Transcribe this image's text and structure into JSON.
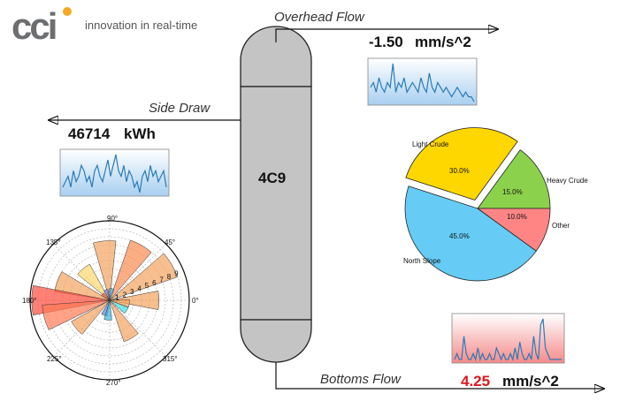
{
  "brand": {
    "logo_text": "cci",
    "tagline": "innovation in real-time"
  },
  "column": {
    "id": "4C9"
  },
  "overhead": {
    "label": "Overhead Flow",
    "value": "-1.50",
    "unit": "mm/s^2"
  },
  "side_draw": {
    "label": "Side Draw",
    "value": "46714",
    "unit": "kWh"
  },
  "bottoms": {
    "label": "Bottoms Flow",
    "value": "4.25",
    "unit": "mm/s^2"
  },
  "colors": {
    "accent_red": "#e0161b",
    "sparkline": "#2a7bb5"
  },
  "chart_data": [
    {
      "type": "pie",
      "labels": [
        "Light Crude",
        "Heavy Crude",
        "Other",
        "North Slope"
      ],
      "values": [
        30.0,
        15.0,
        10.0,
        45.0
      ],
      "pct_labels": [
        "30.0%",
        "15.0%",
        "10.0%",
        "45.0%"
      ],
      "colors": [
        "#ffd700",
        "#8cd14b",
        "#ff8585",
        "#66ccf5"
      ],
      "explode": [
        "Light Crude"
      ]
    },
    {
      "type": "polar-bar",
      "angle_ticks": [
        "90°",
        "45°",
        "0°",
        "315°",
        "270°",
        "225°",
        "180°",
        "135°"
      ],
      "radial_ticks": [
        "1",
        "2",
        "3",
        "4",
        "5",
        "6",
        "7",
        "8",
        "9"
      ],
      "bars": [
        {
          "theta": 0,
          "r": 6.2,
          "color": "#f4a460"
        },
        {
          "theta": 30,
          "r": 9.0,
          "color": "#f4a460"
        },
        {
          "theta": 60,
          "r": 8.0,
          "color": "#fa8a50"
        },
        {
          "theta": 95,
          "r": 7.5,
          "color": "#f4a460"
        },
        {
          "theta": 130,
          "r": 5.2,
          "color": "#ffd76e"
        },
        {
          "theta": 160,
          "r": 7.0,
          "color": "#f4a460"
        },
        {
          "theta": 180,
          "r": 9.8,
          "color": "#ff4a3a"
        },
        {
          "theta": 195,
          "r": 8.5,
          "color": "#ff7a55"
        },
        {
          "theta": 220,
          "r": 5.5,
          "color": "#f4a460"
        },
        {
          "theta": 250,
          "r": 2.0,
          "color": "#5a80d0"
        },
        {
          "theta": 265,
          "r": 2.5,
          "color": "#3cb9e8"
        },
        {
          "theta": 300,
          "r": 5.5,
          "color": "#f4a460"
        },
        {
          "theta": 330,
          "r": 2.5,
          "color": "#3ce0e0"
        },
        {
          "theta": 350,
          "r": 2.5,
          "color": "#f4a460"
        },
        {
          "theta": 110,
          "r": 1.4,
          "color": "#7a7ad8"
        },
        {
          "theta": 140,
          "r": 1.2,
          "color": "#ff6030"
        },
        {
          "theta": 80,
          "r": 1.5,
          "color": "#3caadc"
        }
      ]
    },
    {
      "type": "line",
      "name": "overhead-sparkline",
      "values": [
        4,
        5,
        3,
        6,
        4,
        3,
        5,
        4,
        9,
        3,
        5,
        4,
        6,
        3,
        4,
        5,
        4,
        3,
        6,
        4,
        3,
        7,
        4,
        3,
        5,
        4,
        3,
        4,
        3,
        2,
        3,
        4,
        3,
        2,
        3,
        2,
        2,
        1
      ]
    },
    {
      "type": "line",
      "name": "side-sparkline",
      "values": [
        3,
        4,
        5,
        3,
        6,
        4,
        5,
        7,
        6,
        4,
        5,
        3,
        6,
        7,
        5,
        4,
        6,
        8,
        5,
        7,
        9,
        6,
        5,
        7,
        4,
        6,
        5,
        3,
        4,
        2,
        5,
        6,
        4,
        7,
        5,
        6,
        4,
        5,
        6,
        3
      ]
    },
    {
      "type": "line",
      "name": "bottoms-sparkline",
      "values": [
        2,
        3,
        2,
        2,
        6,
        3,
        2,
        2,
        3,
        2,
        4,
        2,
        3,
        2,
        2,
        3,
        2,
        2,
        4,
        3,
        2,
        3,
        2,
        2,
        3,
        2,
        4,
        2,
        5,
        3,
        2,
        2,
        3,
        2,
        6,
        3,
        2,
        8,
        9,
        4,
        3,
        2,
        2,
        2,
        2,
        2,
        2
      ]
    }
  ]
}
